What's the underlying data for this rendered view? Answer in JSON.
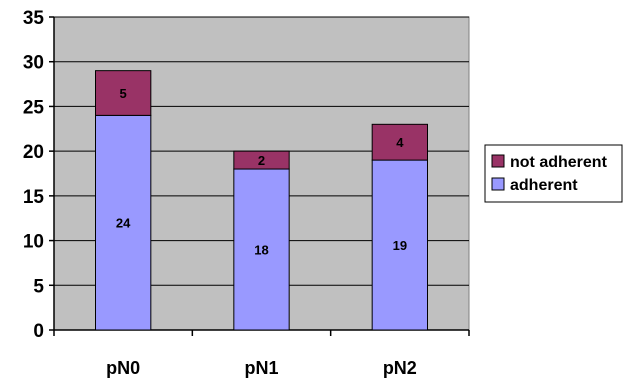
{
  "chart_data": {
    "type": "bar",
    "stacked": true,
    "categories": [
      "pN0",
      "pN1",
      "pN2"
    ],
    "series": [
      {
        "name": "adherent",
        "values": [
          24,
          18,
          19
        ],
        "color": "#9999ff"
      },
      {
        "name": "not adherent",
        "values": [
          5,
          2,
          4
        ],
        "color": "#993366"
      }
    ],
    "title": "",
    "xlabel": "",
    "ylabel": "",
    "ylim": [
      0,
      35
    ],
    "yticks": [
      0,
      5,
      10,
      15,
      20,
      25,
      30,
      35
    ],
    "grid": true,
    "legend_position": "right",
    "plot_background": "#c0c0c0",
    "gridline_color": "#000000"
  }
}
